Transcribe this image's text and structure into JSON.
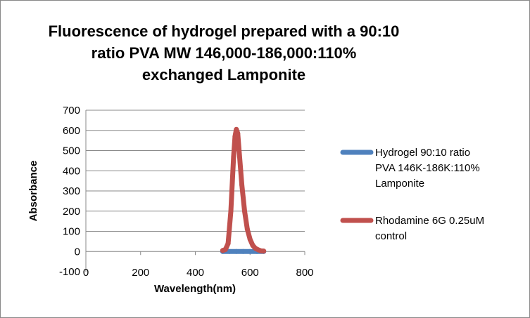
{
  "chart_data": {
    "type": "scatter",
    "title": [
      "Fluorescence of hydrogel prepared with a 90:10",
      "ratio PVA MW 146,000-186,000:110%",
      "exchanged Lamponite"
    ],
    "xlabel": "Wavelength(nm)",
    "ylabel": "Absorbance",
    "xlim": [
      0,
      800
    ],
    "ylim": [
      -100,
      700
    ],
    "xticks": [
      0,
      200,
      400,
      600,
      800
    ],
    "yticks": [
      -100,
      0,
      100,
      200,
      300,
      400,
      500,
      600,
      700
    ],
    "grid": true,
    "legend_position": "right",
    "series": [
      {
        "name_lines": [
          "Hydrogel 90:10 ratio",
          "PVA 146K-186K:110%",
          "Lamponite"
        ],
        "color": "#4f81bd",
        "x": [
          500,
          525,
          550,
          575,
          600,
          625,
          650
        ],
        "y": [
          0,
          0,
          0,
          0,
          0,
          0,
          0
        ]
      },
      {
        "name_lines": [
          "Rhodamine 6G 0.25uM",
          "control"
        ],
        "color": "#c0504d",
        "x": [
          500,
          510,
          520,
          530,
          540,
          545,
          550,
          555,
          560,
          570,
          580,
          590,
          600,
          610,
          620,
          630,
          640,
          650
        ],
        "y": [
          5,
          10,
          40,
          200,
          470,
          570,
          605,
          585,
          500,
          330,
          200,
          110,
          60,
          30,
          15,
          8,
          3,
          2
        ]
      }
    ]
  }
}
